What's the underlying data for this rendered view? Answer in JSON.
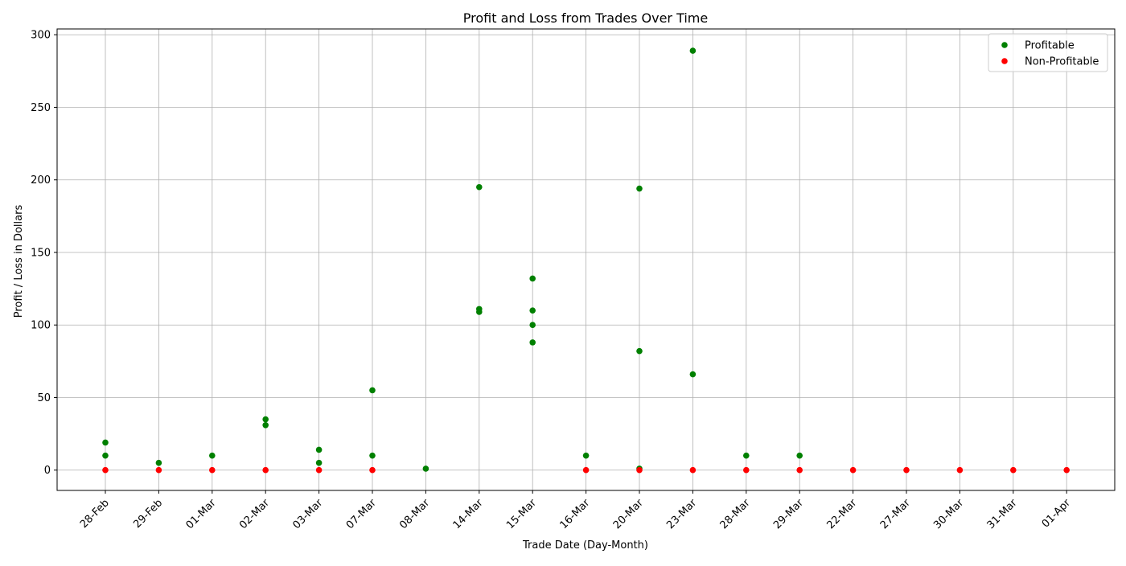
{
  "chart_data": {
    "type": "scatter",
    "title": "Profit and Loss from Trades Over Time",
    "xlabel": "Trade Date (Day-Month)",
    "ylabel": "Profit / Loss in Dollars",
    "categories": [
      "28-Feb",
      "29-Feb",
      "01-Mar",
      "02-Mar",
      "03-Mar",
      "07-Mar",
      "08-Mar",
      "14-Mar",
      "15-Mar",
      "16-Mar",
      "20-Mar",
      "23-Mar",
      "28-Mar",
      "29-Mar",
      "22-Mar",
      "27-Mar",
      "30-Mar",
      "31-Mar",
      "01-Apr"
    ],
    "ylim": [
      -14,
      304
    ],
    "yticks": [
      0,
      50,
      100,
      150,
      200,
      250,
      300
    ],
    "grid": true,
    "legend_position": "top-right",
    "series": [
      {
        "name": "Profitable",
        "color": "#008000",
        "points": [
          {
            "x": "28-Feb",
            "y": 19
          },
          {
            "x": "28-Feb",
            "y": 10
          },
          {
            "x": "29-Feb",
            "y": 5
          },
          {
            "x": "01-Mar",
            "y": 10
          },
          {
            "x": "02-Mar",
            "y": 35
          },
          {
            "x": "02-Mar",
            "y": 31
          },
          {
            "x": "03-Mar",
            "y": 14
          },
          {
            "x": "03-Mar",
            "y": 5
          },
          {
            "x": "07-Mar",
            "y": 55
          },
          {
            "x": "07-Mar",
            "y": 10
          },
          {
            "x": "08-Mar",
            "y": 1
          },
          {
            "x": "14-Mar",
            "y": 195
          },
          {
            "x": "14-Mar",
            "y": 111
          },
          {
            "x": "14-Mar",
            "y": 109
          },
          {
            "x": "15-Mar",
            "y": 132
          },
          {
            "x": "15-Mar",
            "y": 110
          },
          {
            "x": "15-Mar",
            "y": 100
          },
          {
            "x": "15-Mar",
            "y": 88
          },
          {
            "x": "16-Mar",
            "y": 10
          },
          {
            "x": "20-Mar",
            "y": 194
          },
          {
            "x": "20-Mar",
            "y": 82
          },
          {
            "x": "20-Mar",
            "y": 1
          },
          {
            "x": "23-Mar",
            "y": 289
          },
          {
            "x": "23-Mar",
            "y": 66
          },
          {
            "x": "28-Mar",
            "y": 10
          },
          {
            "x": "29-Mar",
            "y": 10
          }
        ]
      },
      {
        "name": "Non-Profitable",
        "color": "#ff0000",
        "points": [
          {
            "x": "28-Feb",
            "y": 0
          },
          {
            "x": "29-Feb",
            "y": 0
          },
          {
            "x": "01-Mar",
            "y": 0
          },
          {
            "x": "02-Mar",
            "y": 0
          },
          {
            "x": "03-Mar",
            "y": 0
          },
          {
            "x": "07-Mar",
            "y": 0
          },
          {
            "x": "16-Mar",
            "y": 0
          },
          {
            "x": "20-Mar",
            "y": 0
          },
          {
            "x": "23-Mar",
            "y": 0
          },
          {
            "x": "28-Mar",
            "y": 0
          },
          {
            "x": "29-Mar",
            "y": 0
          },
          {
            "x": "22-Mar",
            "y": 0
          },
          {
            "x": "27-Mar",
            "y": 0
          },
          {
            "x": "30-Mar",
            "y": 0
          },
          {
            "x": "31-Mar",
            "y": 0
          },
          {
            "x": "01-Apr",
            "y": 0
          }
        ]
      }
    ]
  }
}
